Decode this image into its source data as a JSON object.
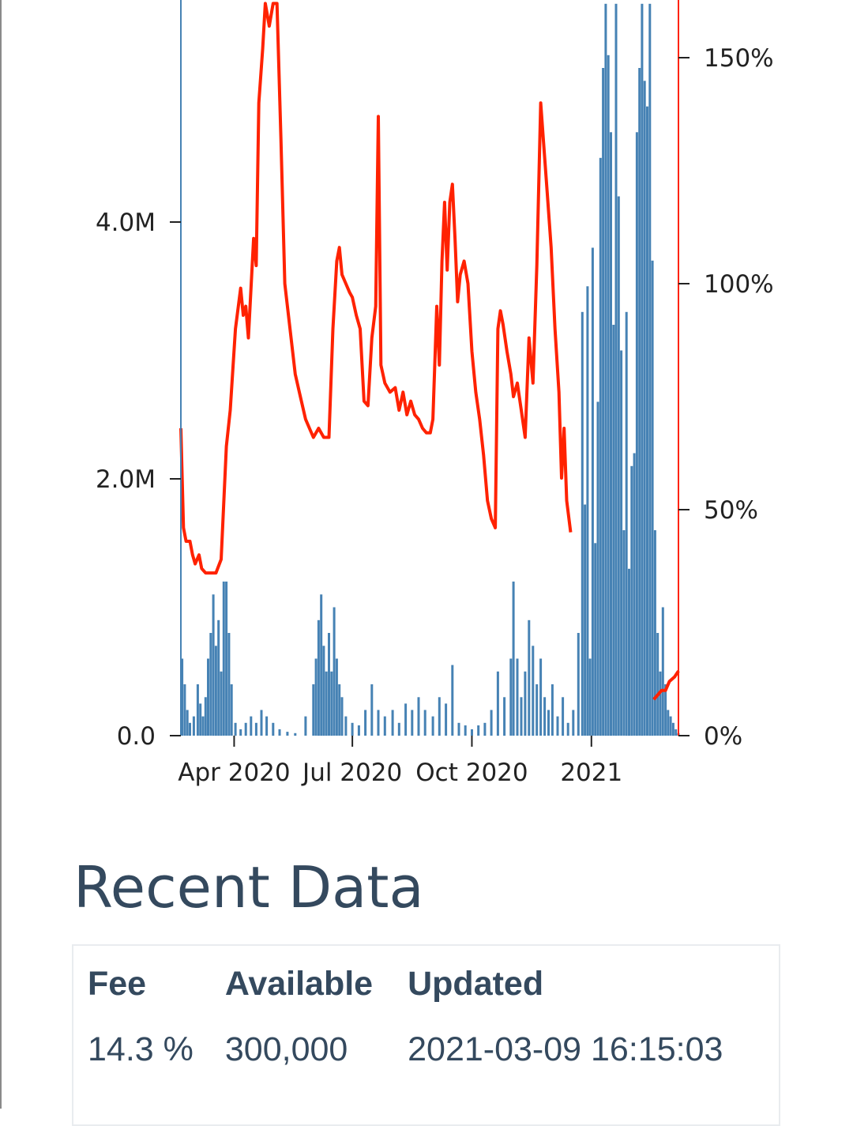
{
  "chart_data": {
    "type": "bar+line",
    "title": "",
    "left_axis": {
      "ticks": [
        {
          "value": 0,
          "label": "0.0"
        },
        {
          "value": 2000000,
          "label": "2.0M"
        },
        {
          "value": 4000000,
          "label": "4.0M"
        }
      ],
      "ylim": [
        0,
        5700000
      ]
    },
    "right_axis": {
      "ticks": [
        {
          "value": 0,
          "label": "0%"
        },
        {
          "value": 50,
          "label": "50%"
        },
        {
          "value": 100,
          "label": "100%"
        },
        {
          "value": 150,
          "label": "150%"
        }
      ],
      "ylim": [
        0,
        162
      ]
    },
    "x_axis": {
      "range": [
        "2020-02-20",
        "2021-03-09"
      ],
      "ticks": [
        {
          "date": "2020-04-01",
          "label": "Apr 2020"
        },
        {
          "date": "2020-07-01",
          "label": "Jul 2020"
        },
        {
          "date": "2020-10-01",
          "label": "Oct 2020"
        },
        {
          "date": "2021-01-01",
          "label": "2021"
        }
      ]
    },
    "series": [
      {
        "kind": "bar",
        "axis": "left",
        "color": "#4682b4",
        "points": [
          [
            "2020-02-21",
            600000
          ],
          [
            "2020-02-23",
            400000
          ],
          [
            "2020-02-25",
            200000
          ],
          [
            "2020-02-27",
            100000
          ],
          [
            "2020-03-01",
            150000
          ],
          [
            "2020-03-04",
            400000
          ],
          [
            "2020-03-06",
            250000
          ],
          [
            "2020-03-08",
            150000
          ],
          [
            "2020-03-10",
            300000
          ],
          [
            "2020-03-12",
            600000
          ],
          [
            "2020-03-14",
            800000
          ],
          [
            "2020-03-16",
            1100000
          ],
          [
            "2020-03-18",
            700000
          ],
          [
            "2020-03-20",
            900000
          ],
          [
            "2020-03-22",
            500000
          ],
          [
            "2020-03-24",
            1200000
          ],
          [
            "2020-03-26",
            1200000
          ],
          [
            "2020-03-28",
            800000
          ],
          [
            "2020-03-30",
            400000
          ],
          [
            "2020-04-02",
            100000
          ],
          [
            "2020-04-06",
            50000
          ],
          [
            "2020-04-10",
            100000
          ],
          [
            "2020-04-14",
            150000
          ],
          [
            "2020-04-18",
            100000
          ],
          [
            "2020-04-22",
            200000
          ],
          [
            "2020-04-26",
            150000
          ],
          [
            "2020-05-01",
            100000
          ],
          [
            "2020-05-06",
            50000
          ],
          [
            "2020-05-12",
            30000
          ],
          [
            "2020-05-18",
            20000
          ],
          [
            "2020-05-26",
            150000
          ],
          [
            "2020-06-01",
            400000
          ],
          [
            "2020-06-03",
            600000
          ],
          [
            "2020-06-05",
            900000
          ],
          [
            "2020-06-07",
            1100000
          ],
          [
            "2020-06-09",
            700000
          ],
          [
            "2020-06-11",
            500000
          ],
          [
            "2020-06-13",
            800000
          ],
          [
            "2020-06-15",
            500000
          ],
          [
            "2020-06-17",
            1000000
          ],
          [
            "2020-06-19",
            600000
          ],
          [
            "2020-06-21",
            400000
          ],
          [
            "2020-06-23",
            300000
          ],
          [
            "2020-06-26",
            150000
          ],
          [
            "2020-07-01",
            100000
          ],
          [
            "2020-07-06",
            80000
          ],
          [
            "2020-07-11",
            200000
          ],
          [
            "2020-07-16",
            400000
          ],
          [
            "2020-07-21",
            200000
          ],
          [
            "2020-07-26",
            150000
          ],
          [
            "2020-08-01",
            200000
          ],
          [
            "2020-08-06",
            100000
          ],
          [
            "2020-08-11",
            250000
          ],
          [
            "2020-08-16",
            200000
          ],
          [
            "2020-08-21",
            300000
          ],
          [
            "2020-08-26",
            200000
          ],
          [
            "2020-09-01",
            150000
          ],
          [
            "2020-09-06",
            300000
          ],
          [
            "2020-09-11",
            250000
          ],
          [
            "2020-09-16",
            550000
          ],
          [
            "2020-09-21",
            100000
          ],
          [
            "2020-09-26",
            80000
          ],
          [
            "2020-10-01",
            50000
          ],
          [
            "2020-10-06",
            80000
          ],
          [
            "2020-10-11",
            100000
          ],
          [
            "2020-10-16",
            200000
          ],
          [
            "2020-10-21",
            500000
          ],
          [
            "2020-10-26",
            300000
          ],
          [
            "2020-10-31",
            600000
          ],
          [
            "2020-11-02",
            1200000
          ],
          [
            "2020-11-05",
            600000
          ],
          [
            "2020-11-08",
            300000
          ],
          [
            "2020-11-11",
            500000
          ],
          [
            "2020-11-14",
            900000
          ],
          [
            "2020-11-17",
            700000
          ],
          [
            "2020-11-20",
            400000
          ],
          [
            "2020-11-23",
            600000
          ],
          [
            "2020-11-26",
            300000
          ],
          [
            "2020-11-29",
            200000
          ],
          [
            "2020-12-02",
            400000
          ],
          [
            "2020-12-06",
            150000
          ],
          [
            "2020-12-10",
            300000
          ],
          [
            "2020-12-14",
            100000
          ],
          [
            "2020-12-18",
            200000
          ],
          [
            "2020-12-22",
            800000
          ],
          [
            "2020-12-25",
            3300000
          ],
          [
            "2020-12-27",
            1800000
          ],
          [
            "2020-12-29",
            3500000
          ],
          [
            "2020-12-31",
            600000
          ],
          [
            "2021-01-02",
            3800000
          ],
          [
            "2021-01-04",
            1500000
          ],
          [
            "2021-01-06",
            2600000
          ],
          [
            "2021-01-08",
            4500000
          ],
          [
            "2021-01-10",
            5200000
          ],
          [
            "2021-01-12",
            5700000
          ],
          [
            "2021-01-14",
            5300000
          ],
          [
            "2021-01-16",
            4700000
          ],
          [
            "2021-01-18",
            3200000
          ],
          [
            "2021-01-20",
            5700000
          ],
          [
            "2021-01-22",
            4200000
          ],
          [
            "2021-01-24",
            3000000
          ],
          [
            "2021-01-26",
            1600000
          ],
          [
            "2021-01-28",
            3300000
          ],
          [
            "2021-01-30",
            1300000
          ],
          [
            "2021-02-01",
            2100000
          ],
          [
            "2021-02-03",
            2200000
          ],
          [
            "2021-02-05",
            4700000
          ],
          [
            "2021-02-07",
            5200000
          ],
          [
            "2021-02-09",
            5700000
          ],
          [
            "2021-02-11",
            5100000
          ],
          [
            "2021-02-13",
            4900000
          ],
          [
            "2021-02-15",
            5700000
          ],
          [
            "2021-02-17",
            3700000
          ],
          [
            "2021-02-19",
            1600000
          ],
          [
            "2021-02-21",
            800000
          ],
          [
            "2021-02-23",
            500000
          ],
          [
            "2021-02-25",
            1000000
          ],
          [
            "2021-02-27",
            400000
          ],
          [
            "2021-03-01",
            200000
          ],
          [
            "2021-03-03",
            150000
          ],
          [
            "2021-03-05",
            100000
          ],
          [
            "2021-03-07",
            50000
          ],
          [
            "2021-03-09",
            20000
          ]
        ]
      },
      {
        "kind": "line",
        "axis": "right",
        "color": "#ff2200",
        "points": [
          [
            "2020-02-20",
            68
          ],
          [
            "2020-02-22",
            46
          ],
          [
            "2020-02-24",
            43
          ],
          [
            "2020-02-27",
            43
          ],
          [
            "2020-02-29",
            40
          ],
          [
            "2020-03-02",
            38
          ],
          [
            "2020-03-05",
            40
          ],
          [
            "2020-03-07",
            37
          ],
          [
            "2020-03-10",
            36
          ],
          [
            "2020-03-14",
            36
          ],
          [
            "2020-03-18",
            36
          ],
          [
            "2020-03-22",
            39
          ],
          [
            "2020-03-26",
            64
          ],
          [
            "2020-03-29",
            72
          ],
          [
            "2020-04-02",
            90
          ],
          [
            "2020-04-06",
            99
          ],
          [
            "2020-04-08",
            93
          ],
          [
            "2020-04-10",
            95
          ],
          [
            "2020-04-12",
            88
          ],
          [
            "2020-04-16",
            110
          ],
          [
            "2020-04-18",
            104
          ],
          [
            "2020-04-20",
            140
          ],
          [
            "2020-04-23",
            152
          ],
          [
            "2020-04-25",
            162
          ],
          [
            "2020-04-28",
            157
          ],
          [
            "2020-05-01",
            162
          ],
          [
            "2020-05-04",
            162
          ],
          [
            "2020-05-07",
            132
          ],
          [
            "2020-05-10",
            100
          ],
          [
            "2020-05-14",
            90
          ],
          [
            "2020-05-18",
            80
          ],
          [
            "2020-05-22",
            75
          ],
          [
            "2020-05-26",
            70
          ],
          [
            "2020-05-29",
            68
          ],
          [
            "2020-06-01",
            66
          ],
          [
            "2020-06-05",
            68
          ],
          [
            "2020-06-09",
            66
          ],
          [
            "2020-06-13",
            66
          ],
          [
            "2020-06-16",
            90
          ],
          [
            "2020-06-19",
            105
          ],
          [
            "2020-06-21",
            108
          ],
          [
            "2020-06-23",
            102
          ],
          [
            "2020-06-26",
            100
          ],
          [
            "2020-06-29",
            98
          ],
          [
            "2020-07-01",
            97
          ],
          [
            "2020-07-04",
            93
          ],
          [
            "2020-07-07",
            90
          ],
          [
            "2020-07-10",
            74
          ],
          [
            "2020-07-13",
            73
          ],
          [
            "2020-07-16",
            88
          ],
          [
            "2020-07-19",
            95
          ],
          [
            "2020-07-21",
            137
          ],
          [
            "2020-07-23",
            82
          ],
          [
            "2020-07-26",
            78
          ],
          [
            "2020-07-30",
            76
          ],
          [
            "2020-08-03",
            77
          ],
          [
            "2020-08-06",
            72
          ],
          [
            "2020-08-09",
            76
          ],
          [
            "2020-08-12",
            71
          ],
          [
            "2020-08-15",
            74
          ],
          [
            "2020-08-18",
            71
          ],
          [
            "2020-08-21",
            70
          ],
          [
            "2020-08-24",
            68
          ],
          [
            "2020-08-27",
            67
          ],
          [
            "2020-08-30",
            67
          ],
          [
            "2020-09-01",
            70
          ],
          [
            "2020-09-04",
            95
          ],
          [
            "2020-09-06",
            82
          ],
          [
            "2020-09-08",
            105
          ],
          [
            "2020-09-10",
            118
          ],
          [
            "2020-09-12",
            103
          ],
          [
            "2020-09-14",
            118
          ],
          [
            "2020-09-16",
            122
          ],
          [
            "2020-09-18",
            110
          ],
          [
            "2020-09-20",
            96
          ],
          [
            "2020-09-22",
            102
          ],
          [
            "2020-09-25",
            105
          ],
          [
            "2020-09-28",
            100
          ],
          [
            "2020-10-01",
            85
          ],
          [
            "2020-10-04",
            76
          ],
          [
            "2020-10-07",
            70
          ],
          [
            "2020-10-10",
            62
          ],
          [
            "2020-10-13",
            52
          ],
          [
            "2020-10-16",
            48
          ],
          [
            "2020-10-19",
            46
          ],
          [
            "2020-10-21",
            90
          ],
          [
            "2020-10-23",
            94
          ],
          [
            "2020-10-25",
            91
          ],
          [
            "2020-10-28",
            85
          ],
          [
            "2020-10-31",
            80
          ],
          [
            "2020-11-02",
            75
          ],
          [
            "2020-11-05",
            78
          ],
          [
            "2020-11-08",
            72
          ],
          [
            "2020-11-11",
            66
          ],
          [
            "2020-11-14",
            88
          ],
          [
            "2020-11-17",
            78
          ],
          [
            "2020-11-20",
            104
          ],
          [
            "2020-11-23",
            140
          ],
          [
            "2020-11-25",
            132
          ],
          [
            "2020-11-28",
            120
          ],
          [
            "2020-12-01",
            108
          ],
          [
            "2020-12-04",
            90
          ],
          [
            "2020-12-07",
            76
          ],
          [
            "2020-12-09",
            57
          ],
          [
            "2020-12-11",
            68
          ],
          [
            "2020-12-13",
            52
          ],
          [
            "2020-12-16",
            45
          ]
        ]
      },
      {
        "kind": "line",
        "axis": "right",
        "color": "#ff2200",
        "points": [
          [
            "2021-02-18",
            8
          ],
          [
            "2021-02-21",
            9
          ],
          [
            "2021-02-24",
            10
          ],
          [
            "2021-02-27",
            10
          ],
          [
            "2021-03-02",
            12
          ],
          [
            "2021-03-06",
            13
          ],
          [
            "2021-03-09",
            14.3
          ]
        ]
      }
    ]
  },
  "recent_data": {
    "title": "Recent Data",
    "headers": {
      "fee": "Fee",
      "available": "Available",
      "updated": "Updated"
    },
    "row": {
      "fee": "14.3 %",
      "available": "300,000",
      "updated": "2021-03-09 16:15:03"
    }
  }
}
